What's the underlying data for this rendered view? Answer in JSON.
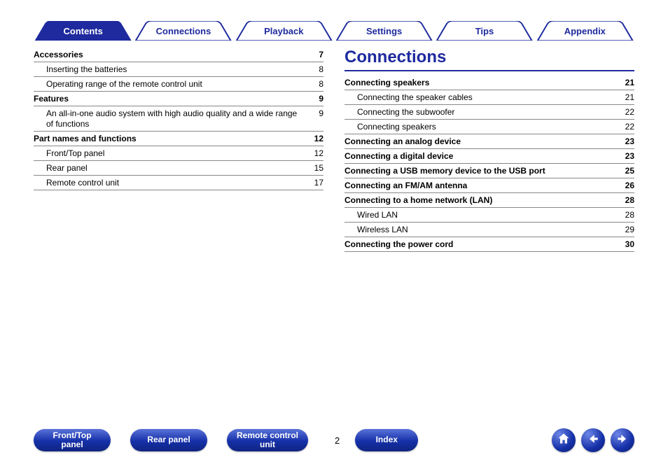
{
  "colors": {
    "brand": "#1e2a9e",
    "tab_fill_active": "#1e2a9e",
    "tab_fill": "#ffffff",
    "tab_stroke": "#1e2a9e",
    "pill_top": "#5a72d9",
    "pill_bottom": "#0f2480",
    "rule": "#888888"
  },
  "tabs": [
    {
      "label": "Contents",
      "active": true
    },
    {
      "label": "Connections",
      "active": false
    },
    {
      "label": "Playback",
      "active": false
    },
    {
      "label": "Settings",
      "active": false
    },
    {
      "label": "Tips",
      "active": false
    },
    {
      "label": "Appendix",
      "active": false
    }
  ],
  "left_toc": [
    {
      "label": "Accessories",
      "page": "7",
      "head": true
    },
    {
      "label": "Inserting the batteries",
      "page": "8",
      "head": false
    },
    {
      "label": "Operating range of the remote control unit",
      "page": "8",
      "head": false
    },
    {
      "label": "Features",
      "page": "9",
      "head": true
    },
    {
      "label": "An all-in-one audio system with high audio quality and a wide range of functions",
      "page": "9",
      "head": false
    },
    {
      "label": "Part names and functions",
      "page": "12",
      "head": true
    },
    {
      "label": "Front/Top panel",
      "page": "12",
      "head": false
    },
    {
      "label": "Rear panel",
      "page": "15",
      "head": false
    },
    {
      "label": "Remote control unit",
      "page": "17",
      "head": false
    }
  ],
  "right_section_title": "Connections",
  "right_toc": [
    {
      "label": "Connecting speakers",
      "page": "21",
      "head": true
    },
    {
      "label": "Connecting the speaker cables",
      "page": "21",
      "head": false
    },
    {
      "label": "Connecting the subwoofer",
      "page": "22",
      "head": false
    },
    {
      "label": "Connecting speakers",
      "page": "22",
      "head": false
    },
    {
      "label": "Connecting an analog device",
      "page": "23",
      "head": true
    },
    {
      "label": "Connecting a digital device",
      "page": "23",
      "head": true
    },
    {
      "label": "Connecting a USB memory device to the USB port",
      "page": "25",
      "head": true
    },
    {
      "label": "Connecting an FM/AM antenna",
      "page": "26",
      "head": true
    },
    {
      "label": "Connecting to a home network (LAN)",
      "page": "28",
      "head": true
    },
    {
      "label": "Wired LAN",
      "page": "28",
      "head": false
    },
    {
      "label": "Wireless LAN",
      "page": "29",
      "head": false
    },
    {
      "label": "Connecting the power cord",
      "page": "30",
      "head": true
    }
  ],
  "footer": {
    "buttons": [
      {
        "label": "Front/Top\npanel"
      },
      {
        "label": "Rear panel"
      },
      {
        "label": "Remote control\nunit"
      }
    ],
    "page_number": "2",
    "index_label": "Index"
  }
}
